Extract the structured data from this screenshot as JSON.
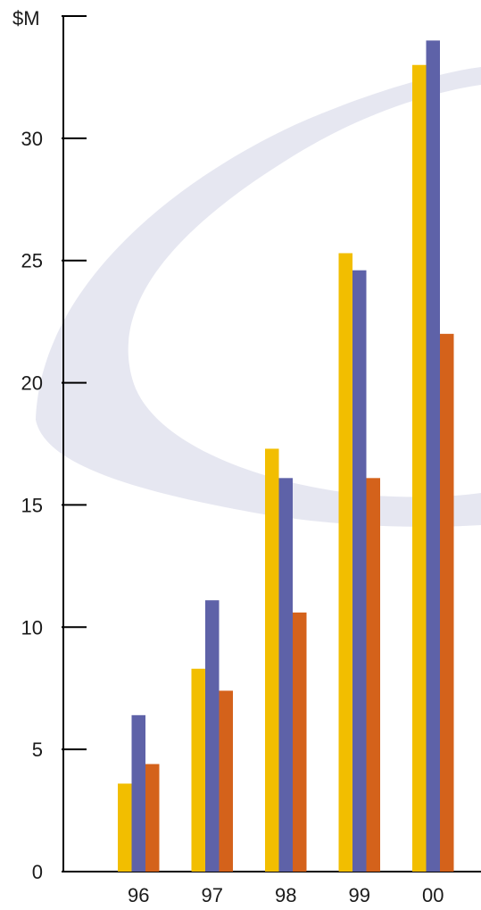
{
  "chart_data": {
    "type": "bar",
    "unit_label": "$M",
    "categories": [
      "96",
      "97",
      "98",
      "99",
      "00"
    ],
    "series": [
      {
        "color": "#f2be00",
        "values": [
          3.6,
          8.3,
          17.3,
          25.3,
          33.0
        ]
      },
      {
        "color": "#5e62a8",
        "values": [
          6.4,
          11.1,
          16.1,
          24.6,
          34.0
        ]
      },
      {
        "color": "#d4621b",
        "values": [
          4.4,
          7.4,
          10.6,
          16.1,
          22.0
        ]
      }
    ],
    "ylim": [
      0,
      35
    ],
    "yticks": [
      0,
      5,
      10,
      15,
      20,
      25,
      30
    ],
    "xlabel": "",
    "ylabel": "",
    "grid": false,
    "background_watermark": "swoosh-logo"
  }
}
